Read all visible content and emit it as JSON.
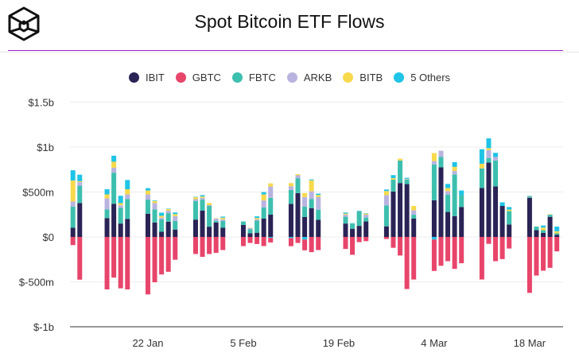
{
  "header": {
    "title": "Spot Bitcoin ETF Flows",
    "logo": "cube-logo"
  },
  "chart_data": {
    "type": "bar",
    "stacked": true,
    "title": "Spot Bitcoin ETF Flows",
    "xlabel": "",
    "ylabel": "",
    "unit": "$m",
    "ylim": [
      -1000,
      1500
    ],
    "yticks": [
      {
        "value": 1500,
        "label": "$1.5b"
      },
      {
        "value": 1000,
        "label": "$1b"
      },
      {
        "value": 500,
        "label": "$500m"
      },
      {
        "value": 0,
        "label": "$0"
      },
      {
        "value": -500,
        "label": "$-500m"
      },
      {
        "value": -1000,
        "label": "$-1b"
      }
    ],
    "xticks": [
      "22 Jan",
      "5 Feb",
      "19 Feb",
      "4 Mar",
      "18 Mar"
    ],
    "grid": true,
    "legend_position": "top",
    "dates": [
      "11 Jan",
      "12 Jan",
      "16 Jan",
      "17 Jan",
      "18 Jan",
      "19 Jan",
      "22 Jan",
      "23 Jan",
      "24 Jan",
      "25 Jan",
      "26 Jan",
      "29 Jan",
      "30 Jan",
      "31 Jan",
      "1 Feb",
      "2 Feb",
      "5 Feb",
      "6 Feb",
      "7 Feb",
      "8 Feb",
      "9 Feb",
      "12 Feb",
      "13 Feb",
      "14 Feb",
      "15 Feb",
      "16 Feb",
      "20 Feb",
      "21 Feb",
      "22 Feb",
      "23 Feb",
      "26 Feb",
      "27 Feb",
      "28 Feb",
      "29 Feb",
      "1 Mar",
      "4 Mar",
      "5 Mar",
      "6 Mar",
      "7 Mar",
      "8 Mar",
      "11 Mar",
      "12 Mar",
      "13 Mar",
      "14 Mar",
      "15 Mar",
      "18 Mar",
      "19 Mar",
      "20 Mar",
      "21 Mar",
      "22 Mar"
    ],
    "series": [
      {
        "name": "IBIT",
        "color": "#2a2356",
        "values": [
          102,
          377,
          210,
          368,
          149,
          201,
          257,
          161,
          58,
          169,
          82,
          193,
          292,
          114,
          161,
          102,
          134,
          41,
          47,
          204,
          248,
          368,
          488,
          222,
          321,
          190,
          149,
          91,
          123,
          172,
          118,
          505,
          600,
          588,
          204,
          408,
          775,
          278,
          232,
          333,
          545,
          827,
          563,
          345,
          138,
          436,
          75,
          46,
          224,
          23
        ]
      },
      {
        "name": "GBTC",
        "color": "#e8456b",
        "values": [
          -91,
          -476,
          -584,
          -453,
          -572,
          -584,
          -640,
          -505,
          -418,
          -388,
          -254,
          -190,
          -222,
          -190,
          -178,
          -146,
          -102,
          -67,
          -79,
          -102,
          -53,
          -91,
          -67,
          -120,
          -169,
          -146,
          -134,
          -199,
          -58,
          -47,
          -23,
          -121,
          -207,
          -580,
          -474,
          -350,
          -321,
          -270,
          -356,
          -293,
          -474,
          -77,
          -270,
          -247,
          -129,
          -623,
          -430,
          -376,
          -344,
          -161
        ]
      },
      {
        "name": "FBTC",
        "color": "#3dbfae",
        "values": [
          234,
          193,
          96,
          347,
          175,
          222,
          158,
          146,
          137,
          96,
          96,
          207,
          123,
          231,
          18,
          76,
          38,
          44,
          134,
          123,
          187,
          155,
          166,
          114,
          102,
          114,
          76,
          58,
          161,
          44,
          232,
          132,
          250,
          49,
          43,
          399,
          115,
          192,
          462,
          132,
          218,
          52,
          287,
          0,
          149,
          11,
          40,
          29,
          23,
          17
        ]
      },
      {
        "name": "ARKB",
        "color": "#b9b3e0",
        "values": [
          58,
          41,
          123,
          55,
          29,
          50,
          58,
          70,
          20,
          29,
          53,
          20,
          20,
          9,
          26,
          18,
          0,
          15,
          15,
          79,
          126,
          41,
          32,
          108,
          85,
          140,
          23,
          0,
          4,
          32,
          115,
          0,
          0,
          6,
          49,
          37,
          69,
          40,
          40,
          0,
          0,
          86,
          40,
          0,
          0,
          4,
          0,
          0,
          4,
          0
        ]
      },
      {
        "name": "BITB",
        "color": "#f7d94c",
        "values": [
          234,
          9,
          44,
          67,
          23,
          58,
          44,
          23,
          20,
          18,
          23,
          23,
          15,
          23,
          3,
          18,
          0,
          2,
          15,
          67,
          35,
          35,
          12,
          44,
          123,
          23,
          12,
          0,
          0,
          12,
          46,
          17,
          20,
          4,
          49,
          89,
          0,
          34,
          46,
          0,
          52,
          23,
          0,
          0,
          17,
          4,
          0,
          29,
          2,
          23
        ]
      },
      {
        "name": "5 Others",
        "color": "#1fc4e6",
        "values": [
          114,
          73,
          58,
          67,
          82,
          102,
          26,
          6,
          35,
          3,
          18,
          3,
          15,
          0,
          0,
          12,
          0,
          0,
          18,
          26,
          -9,
          -12,
          0,
          -29,
          9,
          15,
          12,
          4,
          3,
          4,
          17,
          34,
          0,
          11,
          0,
          -29,
          0,
          46,
          52,
          52,
          161,
          109,
          46,
          40,
          29,
          4,
          0,
          23,
          0,
          52
        ]
      }
    ]
  }
}
